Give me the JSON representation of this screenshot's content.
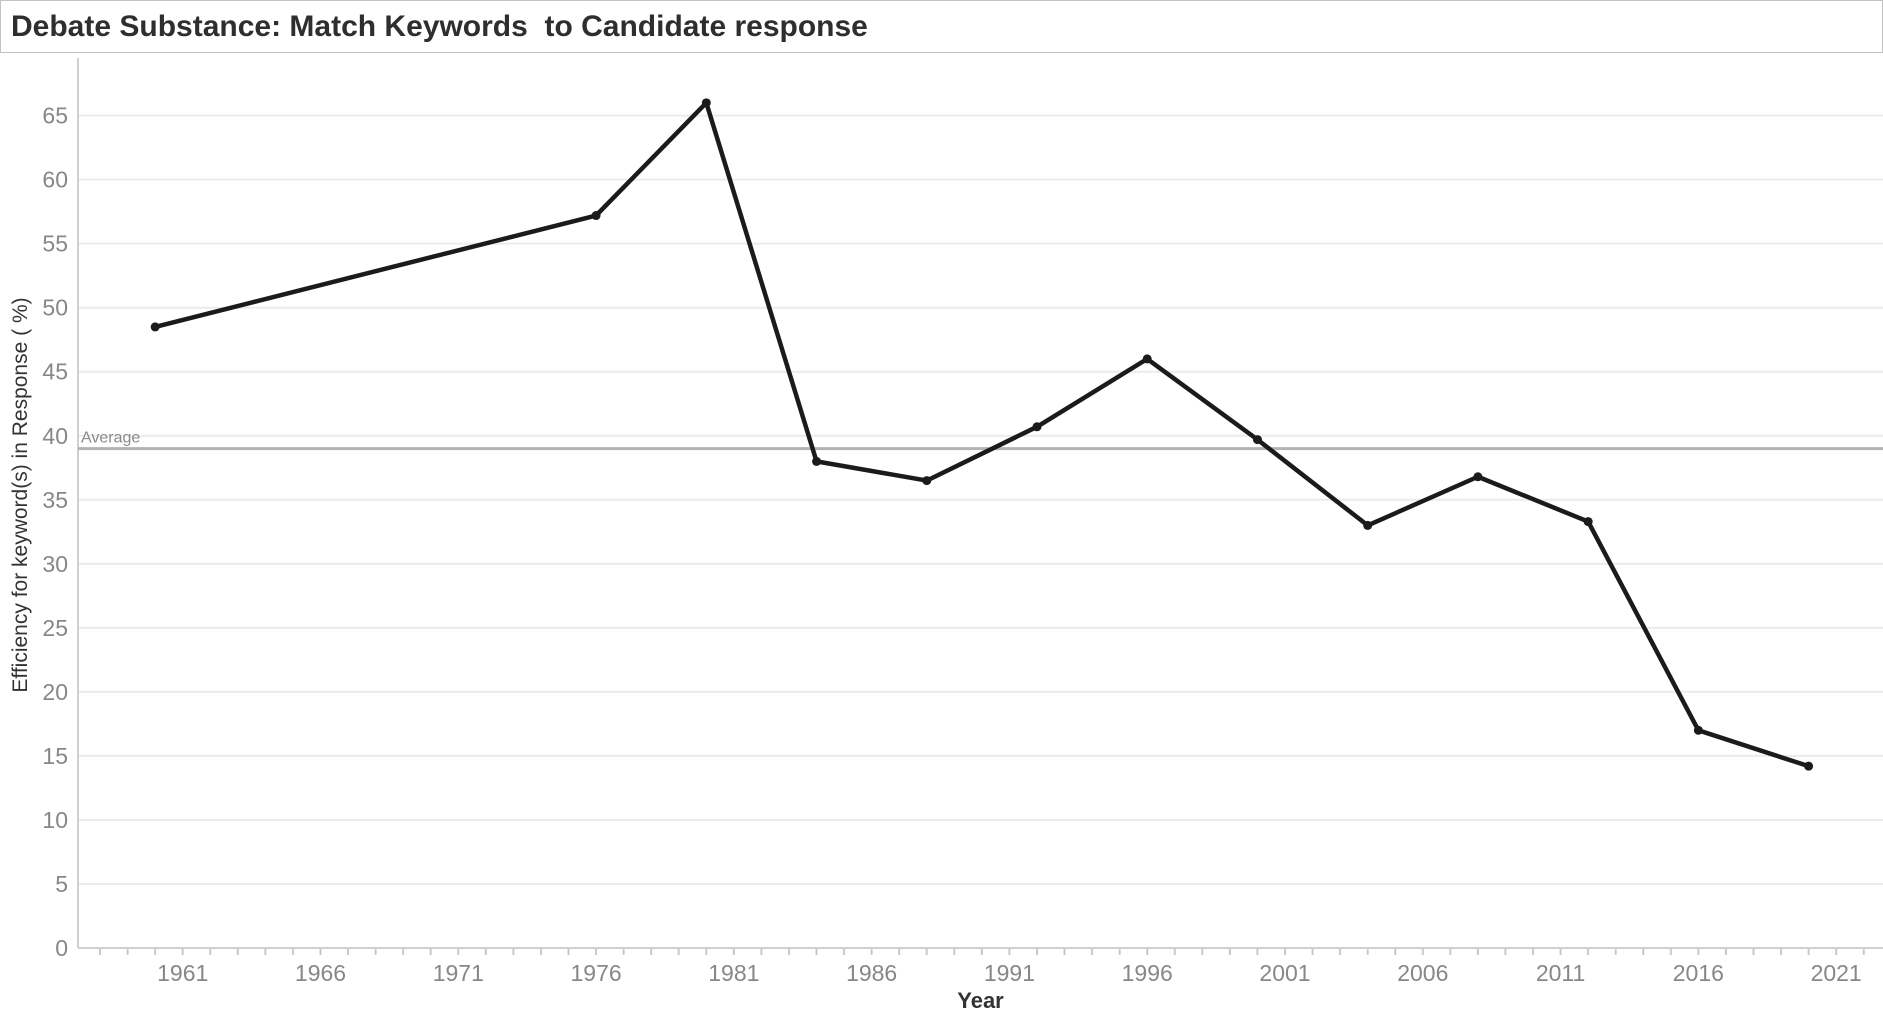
{
  "title": "Debate Substance: Match Keywords  to Candidate response",
  "chart_data": {
    "type": "line",
    "title": "Debate Substance: Match Keywords  to Candidate response",
    "xlabel": "Year",
    "ylabel": "Efficiency for keyword(s) in Response ( %)",
    "x": [
      1960,
      1976,
      1980,
      1984,
      1988,
      1992,
      1996,
      2000,
      2004,
      2008,
      2012,
      2016,
      2020
    ],
    "values": [
      48.5,
      57.2,
      66,
      38,
      36.5,
      40.7,
      46,
      39.7,
      33,
      36.8,
      33.3,
      17,
      14.2
    ],
    "series_name": "Efficiency for keyword(s) in Response (%)",
    "reference_line": {
      "label": "Average",
      "value": 39
    },
    "x_ticks": [
      1961,
      1966,
      1971,
      1976,
      1981,
      1986,
      1991,
      1996,
      2001,
      2006,
      2011,
      2016,
      2021
    ],
    "y_ticks": [
      0,
      5,
      10,
      15,
      20,
      25,
      30,
      35,
      40,
      45,
      50,
      55,
      60,
      65
    ],
    "xlim": [
      1957.2,
      2022.7
    ],
    "ylim": [
      0,
      69.5
    ],
    "grid": "horizontal-on",
    "legend": "none",
    "minor_x_tick_years": {
      "start": 1958,
      "end": 2022,
      "step": 1
    }
  },
  "colors": {
    "line": "#1b1b1b",
    "marker": "#1b1b1b",
    "reference_line": "#b3b3b3",
    "reference_label": "#8a8a8a",
    "gridline": "#ececec",
    "axis_line": "#d0d0d0",
    "tick": "#c9c9c9",
    "tick_label": "#878787",
    "axis_title": "#333333",
    "title_text": "#2e2e2e",
    "header_border": "#c2c2c2",
    "background": "#ffffff"
  }
}
